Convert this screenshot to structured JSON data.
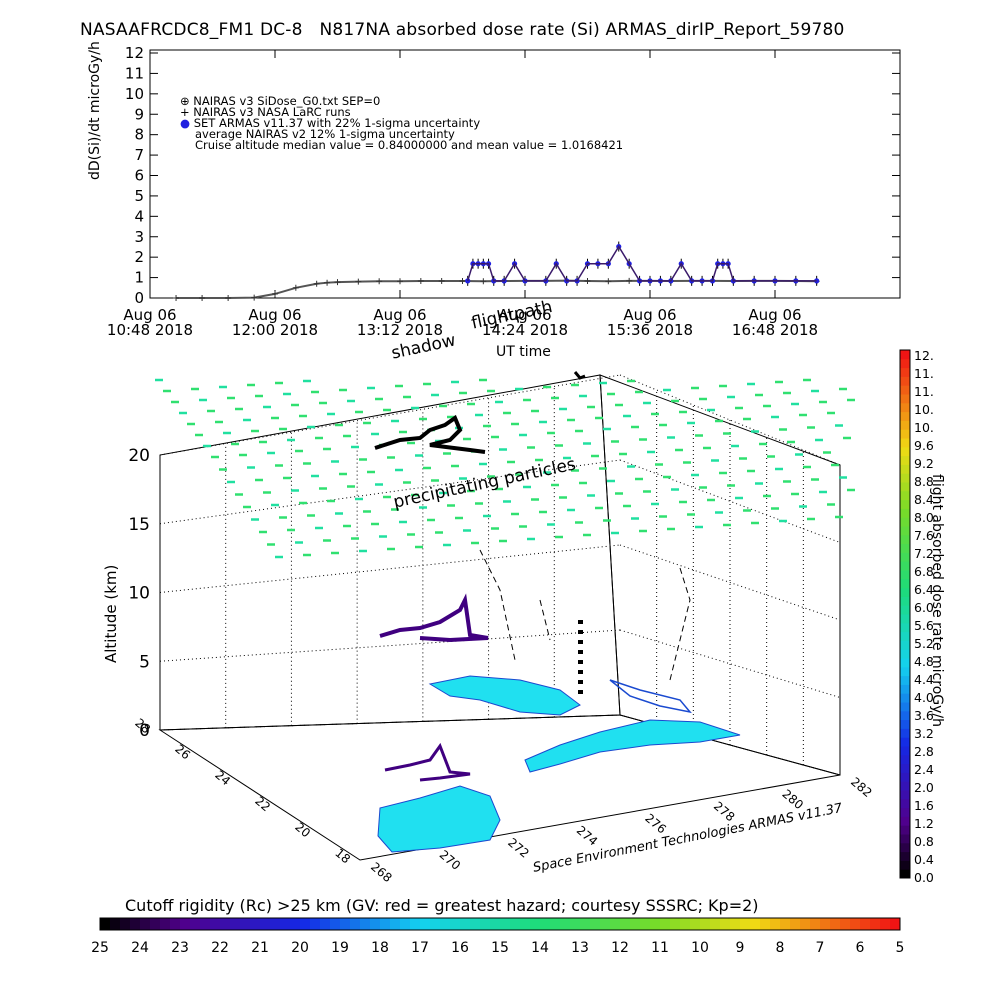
{
  "title": "NASAAFRCDC8_FM1 DC-8   N817NA absorbed dose rate (Si) ARMAS_dirIP_Report_59780",
  "chart_data": [
    {
      "type": "scatter",
      "ylabel": "dD(Si)/dt microGy/h",
      "xlabel": "UT time",
      "ylim": [
        0,
        12
      ],
      "yticks": [
        "0",
        "1",
        "2",
        "3",
        "4",
        "5",
        "6",
        "7",
        "8",
        "9",
        "10",
        "11",
        "12"
      ],
      "xticks": [
        {
          "l1": "Aug 06",
          "l2": "10:48 2018"
        },
        {
          "l1": "Aug 06",
          "l2": "12:00 2018"
        },
        {
          "l1": "Aug 06",
          "l2": "13:12 2018"
        },
        {
          "l1": "Aug 06",
          "l2": "14:24 2018"
        },
        {
          "l1": "Aug 06",
          "l2": "15:36 2018"
        },
        {
          "l1": "Aug 06",
          "l2": "16:48 2018"
        }
      ],
      "legend": [
        {
          "symbol": "⊕",
          "text": "NAIRAS v3 SiDose_G0.txt SEP=0"
        },
        {
          "symbol": "+",
          "text": "NAIRAS v3 NASA LaRC runs"
        },
        {
          "symbol": "●",
          "text": "SET ARMAS v11.37 with 22% 1-sigma uncertainty"
        },
        {
          "symbol": "",
          "text": "average NAIRAS v2 12% 1-sigma uncertainty"
        },
        {
          "symbol": "",
          "text": "Cruise altitude median value = 0.84000000 and mean value = 1.0168421"
        }
      ],
      "series": [
        {
          "name": "NAIRAS v3 SiDose_G0.txt SEP=0",
          "x": [
            0.25,
            0.5,
            0.75,
            1.0,
            1.2,
            1.4,
            1.6,
            1.7,
            1.8,
            2.0,
            2.2,
            2.4,
            2.6,
            2.8,
            3.0,
            3.2,
            3.4,
            3.6,
            3.8,
            4.0,
            4.2,
            4.4,
            4.6,
            4.8,
            5.0,
            5.2,
            5.4,
            5.6,
            5.8,
            6.0,
            6.2,
            6.4
          ],
          "y": [
            0.0,
            0.0,
            0.0,
            0.02,
            0.2,
            0.5,
            0.7,
            0.75,
            0.78,
            0.8,
            0.82,
            0.82,
            0.83,
            0.83,
            0.83,
            0.82,
            0.83,
            0.84,
            0.84,
            0.85,
            0.83,
            0.82,
            0.84,
            0.84,
            0.83,
            0.84,
            0.84,
            0.83,
            0.84,
            0.84,
            0.83,
            0.82
          ]
        },
        {
          "name": "SET ARMAS v11.37 with 22% 1-sigma uncertainty",
          "x": [
            3.05,
            3.1,
            3.15,
            3.2,
            3.25,
            3.3,
            3.4,
            3.5,
            3.6,
            3.8,
            3.9,
            4.0,
            4.1,
            4.2,
            4.3,
            4.4,
            4.5,
            4.6,
            4.7,
            4.8,
            4.9,
            5.0,
            5.1,
            5.2,
            5.3,
            5.4,
            5.45,
            5.5,
            5.55,
            5.6,
            5.8,
            6.0,
            6.2,
            6.4
          ],
          "y": [
            0.84,
            1.68,
            1.68,
            1.68,
            1.68,
            0.84,
            0.84,
            1.68,
            0.84,
            0.84,
            1.68,
            0.84,
            0.84,
            1.68,
            1.68,
            1.68,
            2.52,
            1.68,
            0.84,
            0.84,
            0.84,
            0.84,
            1.68,
            0.84,
            0.84,
            0.84,
            1.68,
            1.68,
            1.68,
            0.84,
            0.84,
            0.84,
            0.84,
            0.84
          ]
        }
      ],
      "xlim": [
        0,
        7.2
      ]
    },
    {
      "type": "scatter",
      "zlabel": "Altitude (km)",
      "zticks": [
        "0",
        "5",
        "10",
        "15",
        "20"
      ],
      "yticks": [
        "18",
        "20",
        "22",
        "24",
        "26",
        "28"
      ],
      "xticks": [
        "268",
        "270",
        "272",
        "274",
        "276",
        "278",
        "280",
        "282"
      ],
      "annotations": [
        "flightpath",
        "shadow",
        "precipitating particles"
      ]
    }
  ],
  "colorbar_right": {
    "label": "flight absorbed dose rate microGy/h",
    "ticks": [
      "12.",
      "11.",
      "11.",
      "10.",
      "10.",
      "9.6",
      "9.2",
      "8.8",
      "8.4",
      "8.0",
      "7.6",
      "7.2",
      "6.8",
      "6.4",
      "6.0",
      "5.6",
      "5.2",
      "4.8",
      "4.4",
      "4.0",
      "3.6",
      "3.2",
      "2.8",
      "2.4",
      "2.0",
      "1.6",
      "1.2",
      "0.8",
      "0.4",
      "0.0"
    ]
  },
  "colorbar_bottom": {
    "label": "Cutoff rigidity (Rc) >25 km (GV: red = greatest hazard; courtesy SSSRC; Kp=2)",
    "ticks": [
      "25",
      "24",
      "23",
      "22",
      "21",
      "20",
      "19",
      "18",
      "17",
      "16",
      "15",
      "14",
      "13",
      "12",
      "11",
      "10",
      "9",
      "8",
      "7",
      "6",
      "5"
    ]
  },
  "credit": "Space Environment Technologies ARMAS v11.37",
  "colors": {
    "armas": "#2020e0",
    "ground": "#20e0f0",
    "particles": "#20e080",
    "flight_low": "#400080"
  }
}
